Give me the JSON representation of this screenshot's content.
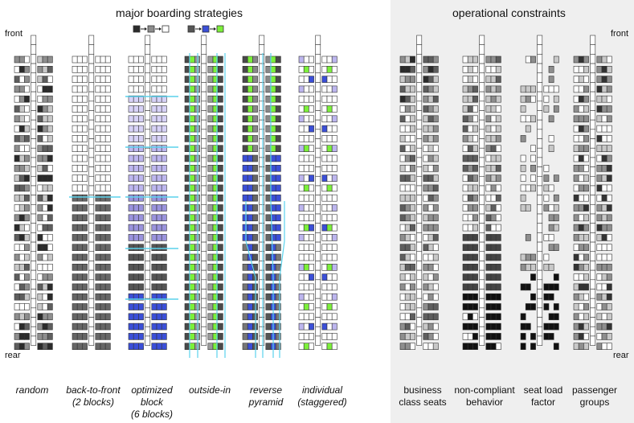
{
  "headings": {
    "left": "major boarding strategies",
    "right": "operational constraints"
  },
  "axis_labels": {
    "front": "front",
    "rear": "rear"
  },
  "legend_colors": {
    "random_order": [
      "#2b2b2b",
      "#8c8c8c",
      "#ffffff"
    ],
    "outside_in_order": [
      "#555555",
      "#3b4fd8",
      "#7cf03a"
    ]
  },
  "colors": {
    "accent_line": "#5ad2ec",
    "panel_background": "#efefef",
    "seat_border": "#333333"
  },
  "strategies": [
    {
      "key": "random",
      "lines": [
        "random"
      ],
      "caption_style": "italic"
    },
    {
      "key": "back-to-front",
      "lines": [
        "back-to-front",
        "(2 blocks)"
      ],
      "caption_style": "italic"
    },
    {
      "key": "optimized-block",
      "lines": [
        "optimized",
        "block",
        "(6 blocks)"
      ],
      "caption_style": "italic"
    },
    {
      "key": "outside-in",
      "lines": [
        "outside-in"
      ],
      "caption_style": "italic"
    },
    {
      "key": "reverse-pyramid",
      "lines": [
        "reverse",
        "pyramid"
      ],
      "caption_style": "italic"
    },
    {
      "key": "individual-staggered",
      "lines": [
        "individual",
        "(staggered)"
      ],
      "caption_style": "italic"
    }
  ],
  "constraints": [
    {
      "key": "business-class-seats",
      "lines": [
        "business",
        "class seats"
      ],
      "caption_style": "plain"
    },
    {
      "key": "non-compliant-behavior",
      "lines": [
        "non-compliant",
        "behavior"
      ],
      "caption_style": "plain"
    },
    {
      "key": "seat-load-factor",
      "lines": [
        "seat load",
        "factor"
      ],
      "caption_style": "plain"
    },
    {
      "key": "passenger-groups",
      "lines": [
        "passenger",
        "groups"
      ],
      "caption_style": "plain"
    }
  ],
  "cabin": {
    "rows": 30,
    "seats_per_side": 3,
    "aisle_cells": 33
  }
}
